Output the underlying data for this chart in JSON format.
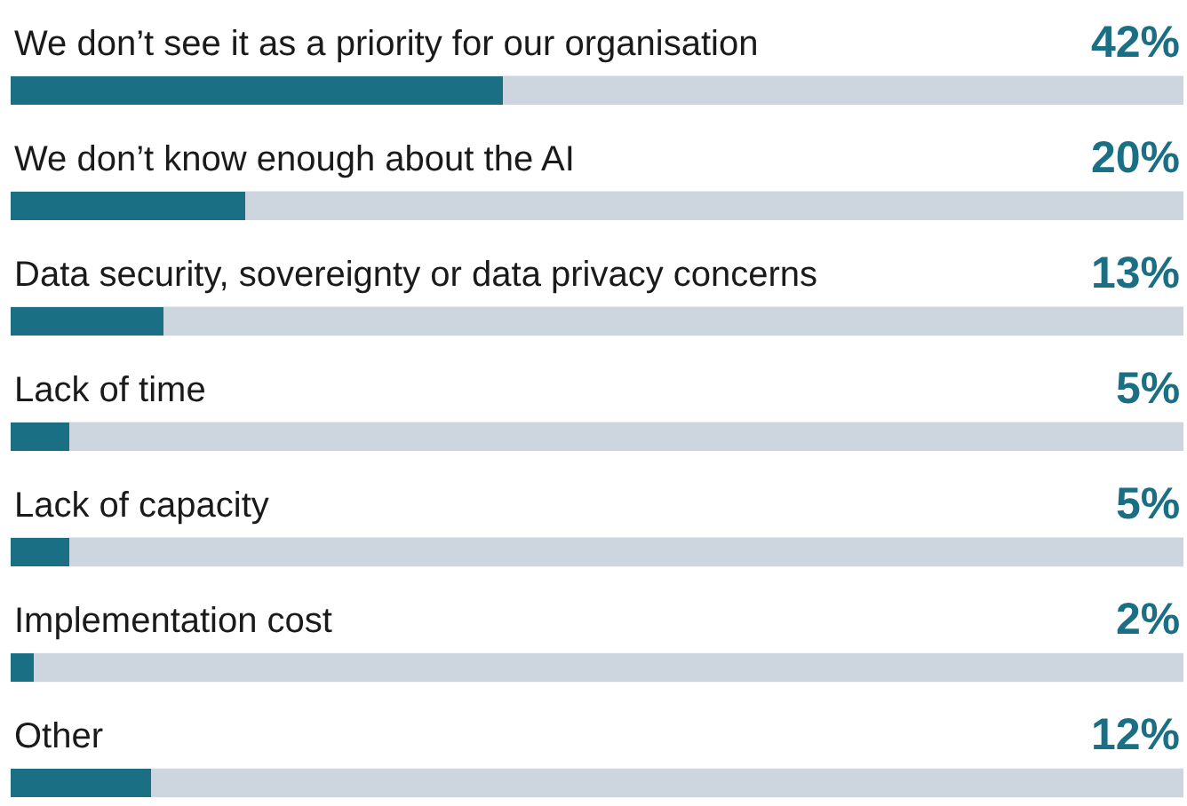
{
  "chart_data": {
    "type": "bar",
    "orientation": "horizontal",
    "categories": [
      "We don’t see it as a priority for our organisation",
      "We don’t know enough about the AI",
      "Data security, sovereignty or data privacy concerns",
      "Lack of time",
      "Lack of capacity",
      "Implementation cost",
      "Other"
    ],
    "values": [
      42,
      20,
      13,
      5,
      5,
      2,
      12
    ],
    "value_labels": [
      "42%",
      "20%",
      "13%",
      "5%",
      "5%",
      "2%",
      "12%"
    ],
    "color": "#1b6f84",
    "xlim": [
      0,
      100
    ],
    "tick_labels": false,
    "grid": false,
    "legend": false
  }
}
